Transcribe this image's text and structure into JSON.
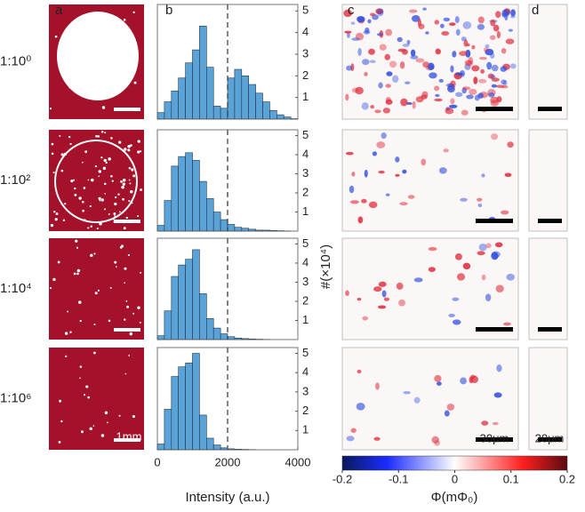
{
  "chart_data": [
    {
      "type": "histogram",
      "bins": [
        0,
        200,
        400,
        600,
        800,
        1000,
        1200,
        1400,
        1600,
        1800,
        2000,
        2200,
        2400,
        2600,
        2800,
        3000,
        3200,
        3400,
        3600,
        3800,
        4000
      ],
      "values": [
        0.3,
        0.8,
        1.3,
        1.9,
        2.6,
        3.2,
        4.3,
        2.4,
        0.6,
        0.5,
        1.9,
        2.3,
        2.0,
        1.6,
        1.2,
        0.8,
        0.4,
        0.2,
        0.1,
        0.02
      ],
      "color": "#5ba3d6",
      "xlim": [
        0,
        4000
      ],
      "ylim": [
        0,
        5.3
      ],
      "yticks": [
        1,
        2,
        3,
        4,
        5
      ],
      "vline": 2000
    },
    {
      "type": "histogram",
      "bins": [
        0,
        200,
        400,
        600,
        800,
        1000,
        1200,
        1400,
        1600,
        1800,
        2000,
        2200,
        2400,
        2600,
        2800,
        3000,
        3200,
        3400,
        3600,
        3800,
        4000
      ],
      "values": [
        0.3,
        1.6,
        3.4,
        3.9,
        4.1,
        3.7,
        2.6,
        1.7,
        1.0,
        0.6,
        0.35,
        0.2,
        0.15,
        0.1,
        0.05,
        0.05,
        0.03,
        0.02,
        0.01,
        0
      ],
      "color": "#5ba3d6",
      "xlim": [
        0,
        4000
      ],
      "ylim": [
        0,
        5.3
      ],
      "yticks": [
        1,
        2,
        3,
        4,
        5
      ],
      "vline": 2000
    },
    {
      "type": "histogram",
      "bins": [
        0,
        200,
        400,
        600,
        800,
        1000,
        1200,
        1400,
        1600,
        1800,
        2000,
        2200,
        2400,
        2600,
        2800,
        3000,
        3200,
        3400,
        3600,
        3800,
        4000
      ],
      "values": [
        0.2,
        1.5,
        3.3,
        3.9,
        4.2,
        4.7,
        2.4,
        1.1,
        0.6,
        0.3,
        0.15,
        0.08,
        0.05,
        0.03,
        0.02,
        0.01,
        0,
        0,
        0,
        0
      ],
      "color": "#5ba3d6",
      "xlim": [
        0,
        4000
      ],
      "ylim": [
        0,
        5.3
      ],
      "yticks": [
        1,
        2,
        3,
        4,
        5
      ],
      "vline": 2000
    },
    {
      "type": "histogram",
      "bins": [
        0,
        200,
        400,
        600,
        800,
        1000,
        1200,
        1400,
        1600,
        1800,
        2000,
        2200,
        2400,
        2600,
        2800,
        3000,
        3200,
        3400,
        3600,
        3800,
        4000
      ],
      "values": [
        0.3,
        2.1,
        3.8,
        4.3,
        4.5,
        5.0,
        1.8,
        0.6,
        0.25,
        0.1,
        0.05,
        0.03,
        0.02,
        0.01,
        0,
        0,
        0,
        0,
        0,
        0
      ],
      "color": "#5ba3d6",
      "xlim": [
        0,
        4000
      ],
      "ylim": [
        0,
        5.3
      ],
      "yticks": [
        1,
        2,
        3,
        4,
        5
      ],
      "xticks": [
        0,
        2000,
        4000
      ],
      "vline": 2000,
      "x_label": "Intensity (a.u.)"
    }
  ],
  "figure": {
    "panel_labels": [
      "a",
      "b",
      "c",
      "d"
    ],
    "row_labels": [
      "1:10⁰",
      "1:10²",
      "1:10⁴",
      "1:10⁶"
    ],
    "y_label": "#(×10⁴)",
    "scale_labels": [
      "1mm",
      "30μm",
      "20μm"
    ],
    "colorbar": {
      "label": "Φ(mΦ₀)",
      "lim": [
        -0.2,
        0.2
      ],
      "ticks": [
        -0.2,
        -0.1,
        0,
        0.1,
        0.2
      ]
    }
  }
}
